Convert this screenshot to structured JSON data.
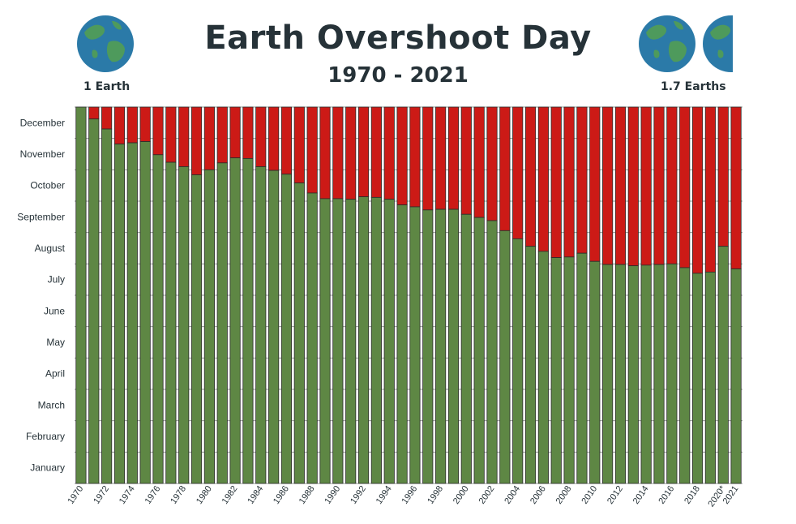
{
  "header": {
    "title": "Earth Overshoot Day",
    "subtitle": "1970 - 2021",
    "left_label": "1 Earth",
    "right_label": "1.7 Earths",
    "left_icon": "globe-icon",
    "right_icon": "globe-icon"
  },
  "colors": {
    "under": "#5e8744",
    "over": "#cc1a16",
    "ocean": "#2b7aa8",
    "land": "#4e9a5c",
    "text": "#263238",
    "grid": "#3a4a3a"
  },
  "chart_data": {
    "type": "bar",
    "stacked": true,
    "title": "Earth Overshoot Day",
    "subtitle": "1970 - 2021",
    "ylabel": "",
    "xlabel": "",
    "y_unit": "month of year",
    "ylim": [
      0,
      12
    ],
    "grid": true,
    "y_ticks": [
      "January",
      "February",
      "March",
      "April",
      "May",
      "June",
      "July",
      "August",
      "September",
      "October",
      "November",
      "December"
    ],
    "x_tick_labels": [
      "1970",
      "1972",
      "1974",
      "1976",
      "1978",
      "1980",
      "1982",
      "1984",
      "1986",
      "1988",
      "1990",
      "1992",
      "1994",
      "1996",
      "1998",
      "2000",
      "2002",
      "2004",
      "2006",
      "2008",
      "2010",
      "2012",
      "2014",
      "2016",
      "2018",
      "2020*",
      "2021"
    ],
    "categories": [
      "1970",
      "1971",
      "1972",
      "1973",
      "1974",
      "1975",
      "1976",
      "1977",
      "1978",
      "1979",
      "1980",
      "1981",
      "1982",
      "1983",
      "1984",
      "1985",
      "1986",
      "1987",
      "1988",
      "1989",
      "1990",
      "1991",
      "1992",
      "1993",
      "1994",
      "1995",
      "1996",
      "1997",
      "1998",
      "1999",
      "2000",
      "2001",
      "2002",
      "2003",
      "2004",
      "2005",
      "2006",
      "2007",
      "2008",
      "2009",
      "2010",
      "2011",
      "2012",
      "2013",
      "2014",
      "2015",
      "2016",
      "2017",
      "2018",
      "2019",
      "2020*",
      "2021"
    ],
    "values": [
      12.0,
      11.62,
      11.3,
      10.82,
      10.86,
      10.9,
      10.48,
      10.24,
      10.1,
      9.84,
      10.0,
      10.22,
      10.38,
      10.36,
      10.1,
      9.98,
      9.86,
      9.58,
      9.26,
      9.08,
      9.08,
      9.06,
      9.14,
      9.12,
      9.06,
      8.88,
      8.82,
      8.72,
      8.74,
      8.74,
      8.58,
      8.48,
      8.38,
      8.06,
      7.8,
      7.56,
      7.4,
      7.2,
      7.22,
      7.34,
      7.08,
      6.98,
      6.98,
      6.94,
      6.96,
      6.98,
      7.0,
      6.88,
      6.7,
      6.74,
      7.56,
      6.84
    ]
  }
}
